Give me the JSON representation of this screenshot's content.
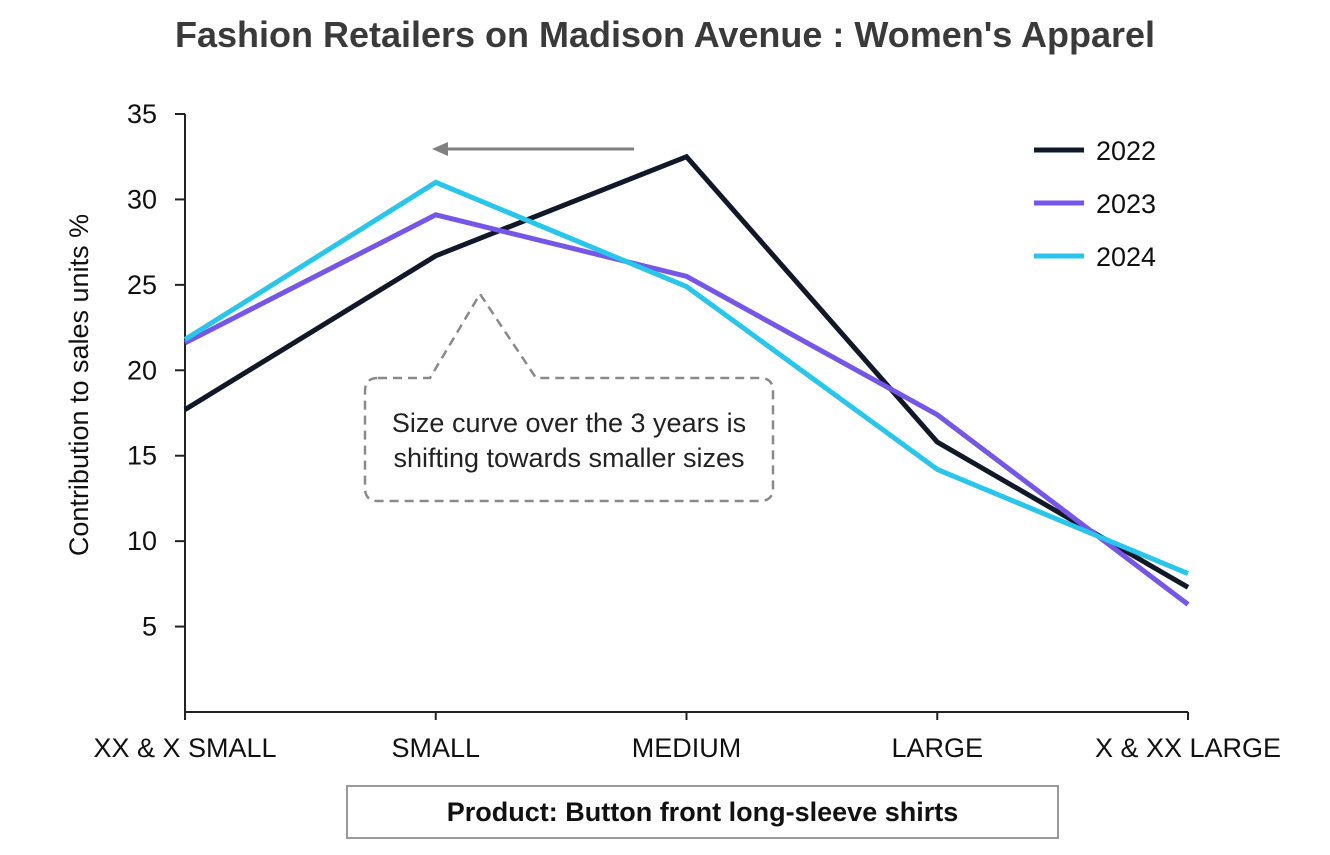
{
  "chart_data": {
    "type": "line",
    "title": "Fashion Retailers on Madison Avenue : Women's Apparel",
    "xlabel": "",
    "ylabel": "Contribution to sales units %",
    "categories": [
      "XX & X SMALL",
      "SMALL",
      "MEDIUM",
      "LARGE",
      "X & XX LARGE"
    ],
    "ylim": [
      0,
      35
    ],
    "yticks": [
      5,
      10,
      15,
      20,
      25,
      30,
      35
    ],
    "grid": false,
    "legend_position": "top-right",
    "series": [
      {
        "name": "2022",
        "color": "#111827",
        "values": [
          17.7,
          26.7,
          32.5,
          15.8,
          7.3
        ]
      },
      {
        "name": "2023",
        "color": "#7656E6",
        "values": [
          21.6,
          29.1,
          25.5,
          17.4,
          6.3
        ]
      },
      {
        "name": "2024",
        "color": "#29C5EA",
        "values": [
          21.8,
          31.0,
          24.9,
          14.2,
          8.1
        ]
      }
    ],
    "annotations": [
      {
        "text": "Size curve over the 3 years is shifting towards smaller sizes"
      }
    ],
    "footer_label": "Product: Button front long-sleeve shirts"
  }
}
